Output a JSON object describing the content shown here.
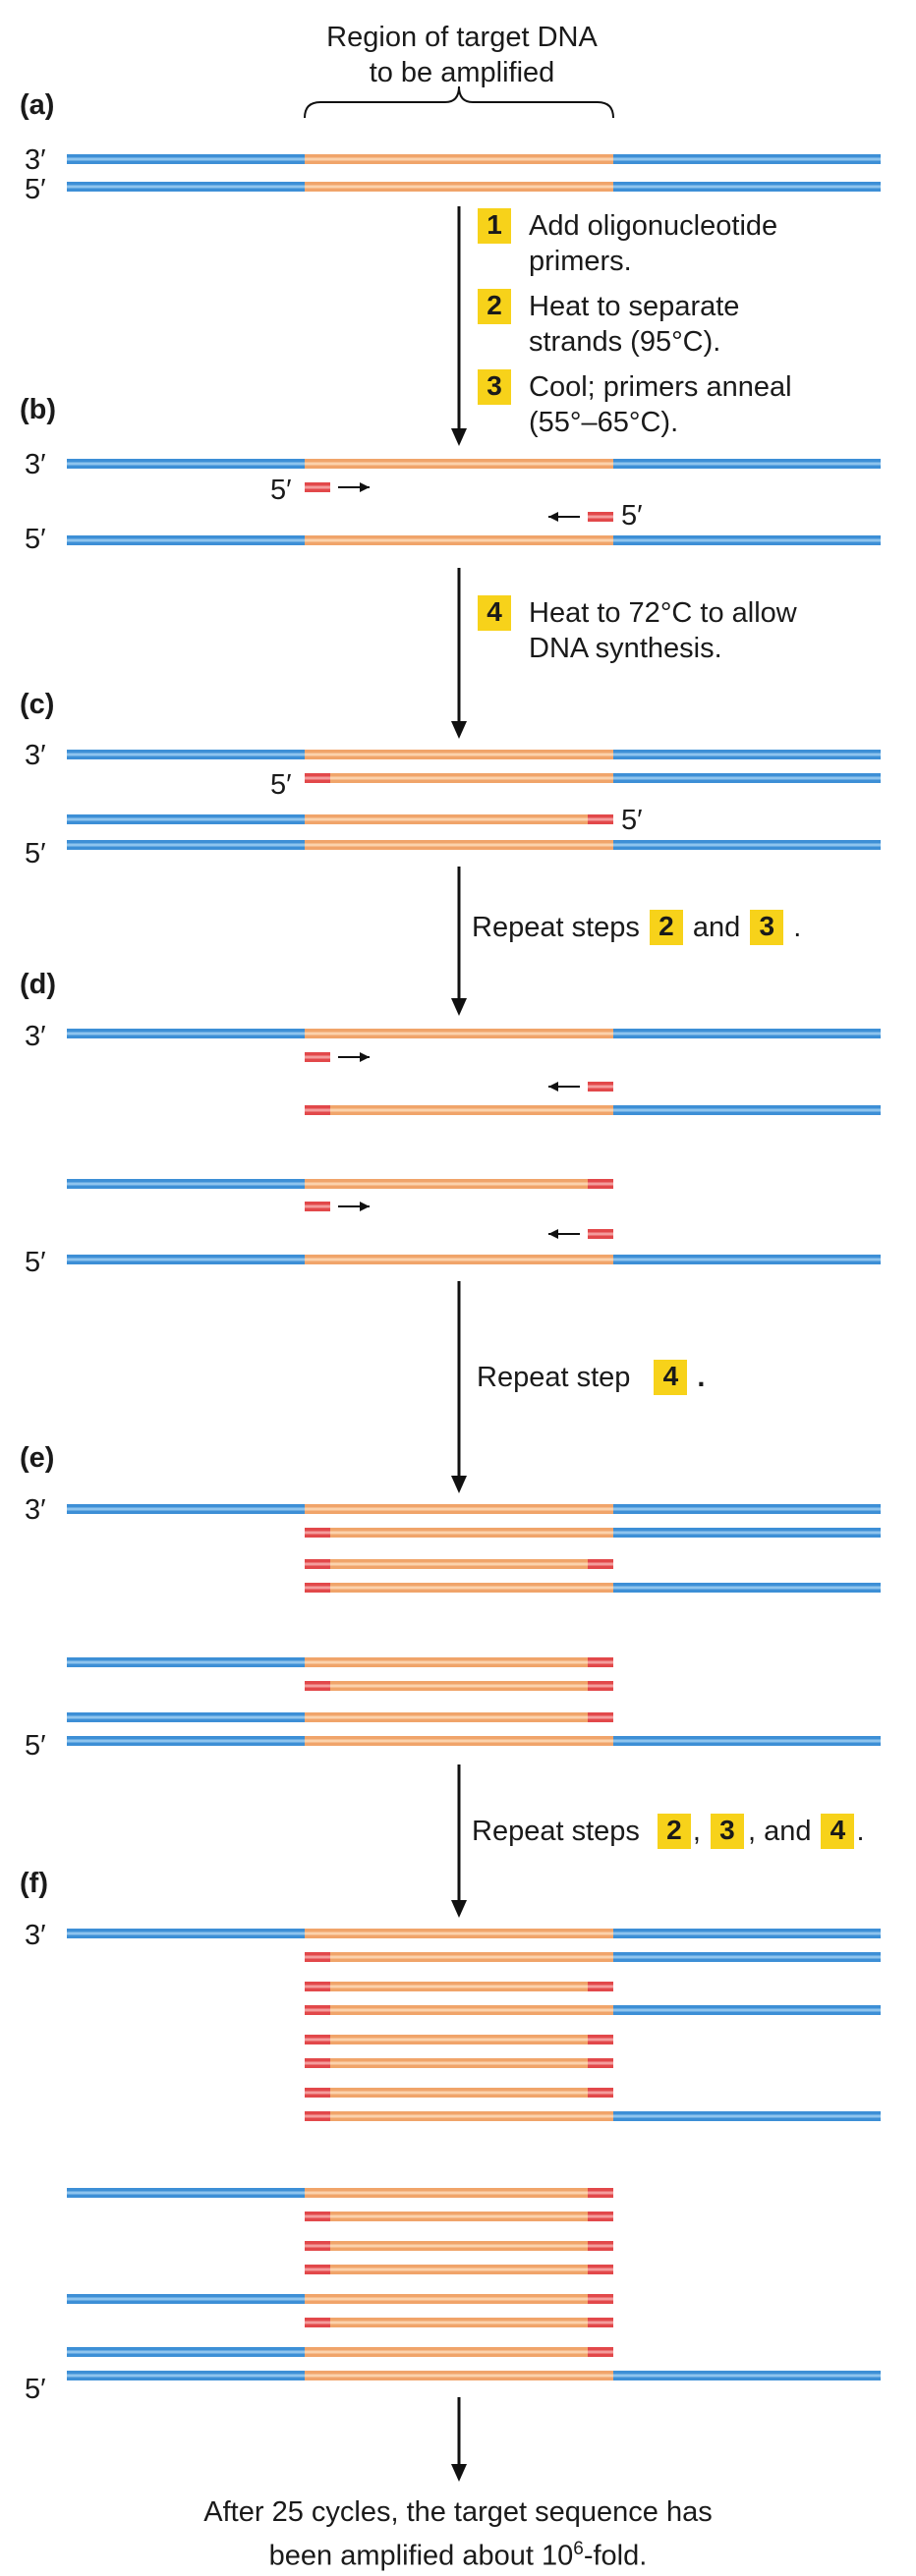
{
  "title": [
    "Region of target DNA",
    "to be amplified"
  ],
  "panels": [
    "(a)",
    "(b)",
    "(c)",
    "(d)",
    "(e)",
    "(f)"
  ],
  "ends": {
    "three": "3′",
    "five": "5′"
  },
  "steps": [
    {
      "num": "1",
      "lines": [
        "Add oligonucleotide",
        "primers."
      ]
    },
    {
      "num": "2",
      "lines": [
        "Heat to separate",
        "strands (95°C)."
      ]
    },
    {
      "num": "3",
      "lines": [
        "Cool; primers anneal",
        "(55°–65°C)."
      ]
    },
    {
      "num": "4",
      "lines": [
        "Heat to 72°C to allow",
        "DNA synthesis."
      ]
    }
  ],
  "repeat_1": {
    "text": "Repeat steps",
    "b1": "2",
    "and": "and",
    "b2": "3",
    "tail": "."
  },
  "repeat_2": {
    "text": "Repeat step",
    "b1": "4",
    "tail": "."
  },
  "repeat_3": {
    "text": "Repeat steps",
    "b1": "2",
    "sep": ",",
    "b2": "3",
    "and": ", and",
    "b3": "4",
    "tail": "."
  },
  "footer": {
    "line1": "After 25 cycles, the target sequence has",
    "line2_pre": "been amplified about 10",
    "sup": "6",
    "line2_post": "-fold."
  },
  "colors": {
    "blue": "#3d8fd6",
    "blue_light": "#8ec4ee",
    "orange": "#f0a46a",
    "orange_light": "#fbd2ac",
    "primer": "#e2484a",
    "primer_light": "#f49c9c",
    "badge": "#f7d21a"
  }
}
